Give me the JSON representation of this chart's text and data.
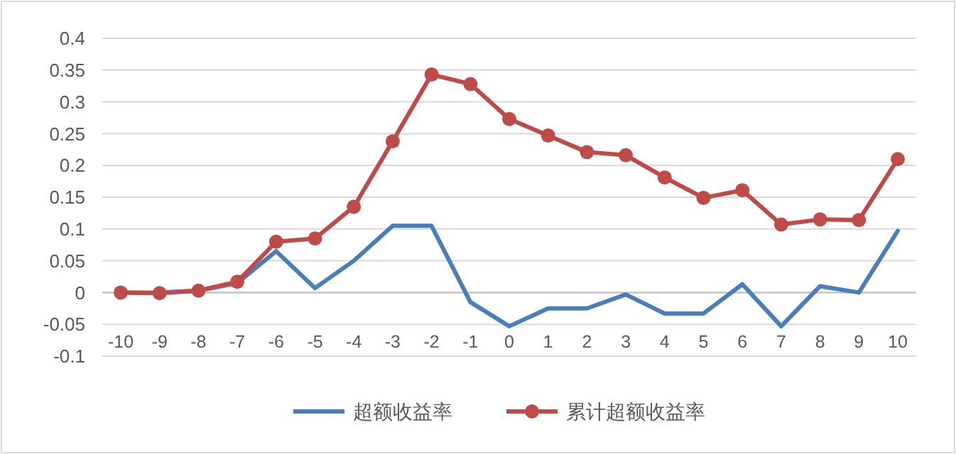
{
  "chart_data": {
    "type": "line",
    "categories": [
      "-10",
      "-9",
      "-8",
      "-7",
      "-6",
      "-5",
      "-4",
      "-3",
      "-2",
      "-1",
      "0",
      "1",
      "2",
      "3",
      "4",
      "5",
      "6",
      "7",
      "8",
      "9",
      "10"
    ],
    "series": [
      {
        "name": "超额收益率",
        "color": "#4a7ebb",
        "marker": "none",
        "values": [
          0,
          0,
          0.003,
          0.015,
          0.065,
          0.007,
          0.05,
          0.105,
          0.105,
          -0.015,
          -0.053,
          -0.025,
          -0.025,
          -0.003,
          -0.033,
          -0.033,
          0.013,
          -0.053,
          0.01,
          0,
          0.097
        ]
      },
      {
        "name": "累计超额收益率",
        "color": "#be4b48",
        "marker": "circle",
        "values": [
          0,
          -0.001,
          0.003,
          0.017,
          0.08,
          0.085,
          0.135,
          0.238,
          0.343,
          0.328,
          0.273,
          0.247,
          0.221,
          0.216,
          0.181,
          0.149,
          0.161,
          0.107,
          0.115,
          0.114,
          0.21
        ]
      }
    ],
    "ylim": [
      -0.1,
      0.4
    ],
    "yticks": [
      -0.1,
      -0.05,
      0,
      0.05,
      0.1,
      0.15,
      0.2,
      0.25,
      0.3,
      0.35,
      0.4
    ],
    "grid": "y",
    "legend": "bottom",
    "line_style": "solid"
  }
}
